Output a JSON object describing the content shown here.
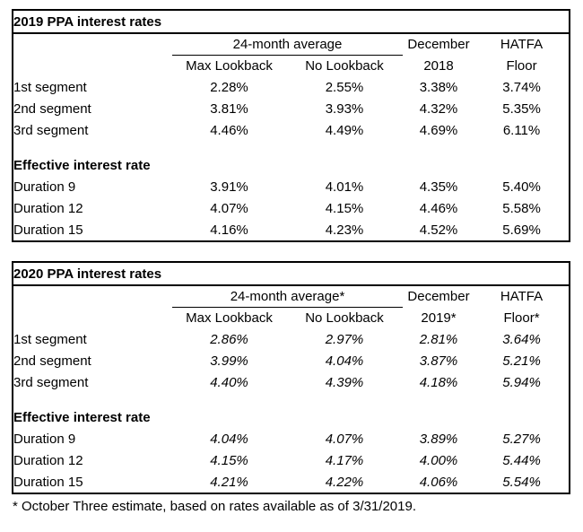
{
  "tables": [
    {
      "title": "2019 PPA interest rates",
      "group_header": "24-month average",
      "col2_header": "Max Lookback",
      "col3_header": "No Lookback",
      "col4_header_line1": "December",
      "col4_header_line2": "2018",
      "col5_header_line1": "HATFA",
      "col5_header_line2": "Floor",
      "segment_rows": [
        {
          "label": "1st segment",
          "values": [
            "2.28%",
            "2.55%",
            "3.38%",
            "3.74%"
          ]
        },
        {
          "label": "2nd segment",
          "values": [
            "3.81%",
            "3.93%",
            "4.32%",
            "5.35%"
          ]
        },
        {
          "label": "3rd segment",
          "values": [
            "4.46%",
            "4.49%",
            "4.69%",
            "6.11%"
          ]
        }
      ],
      "section_header": "Effective interest rate",
      "duration_rows": [
        {
          "label": "Duration 9",
          "values": [
            "3.91%",
            "4.01%",
            "4.35%",
            "5.40%"
          ]
        },
        {
          "label": "Duration 12",
          "values": [
            "4.07%",
            "4.15%",
            "4.46%",
            "5.58%"
          ]
        },
        {
          "label": "Duration 15",
          "values": [
            "4.16%",
            "4.23%",
            "4.52%",
            "5.69%"
          ]
        }
      ]
    },
    {
      "title": "2020 PPA interest rates",
      "group_header": "24-month average*",
      "col2_header": "Max Lookback",
      "col3_header": "No Lookback",
      "col4_header_line1": "December",
      "col4_header_line2": "2019*",
      "col5_header_line1": "HATFA",
      "col5_header_line2": "Floor*",
      "segment_rows": [
        {
          "label": "1st segment",
          "values": [
            "2.86%",
            "2.97%",
            "2.81%",
            "3.64%"
          ]
        },
        {
          "label": "2nd segment",
          "values": [
            "3.99%",
            "4.04%",
            "3.87%",
            "5.21%"
          ]
        },
        {
          "label": "3rd segment",
          "values": [
            "4.40%",
            "4.39%",
            "4.18%",
            "5.94%"
          ]
        }
      ],
      "section_header": "Effective interest rate",
      "duration_rows": [
        {
          "label": "Duration 9",
          "values": [
            "4.04%",
            "4.07%",
            "3.89%",
            "5.27%"
          ]
        },
        {
          "label": "Duration 12",
          "values": [
            "4.15%",
            "4.17%",
            "4.00%",
            "5.44%"
          ]
        },
        {
          "label": "Duration 15",
          "values": [
            "4.21%",
            "4.22%",
            "4.06%",
            "5.54%"
          ]
        }
      ]
    }
  ],
  "footnote": "* October Three estimate, based on rates available as of 3/31/2019."
}
